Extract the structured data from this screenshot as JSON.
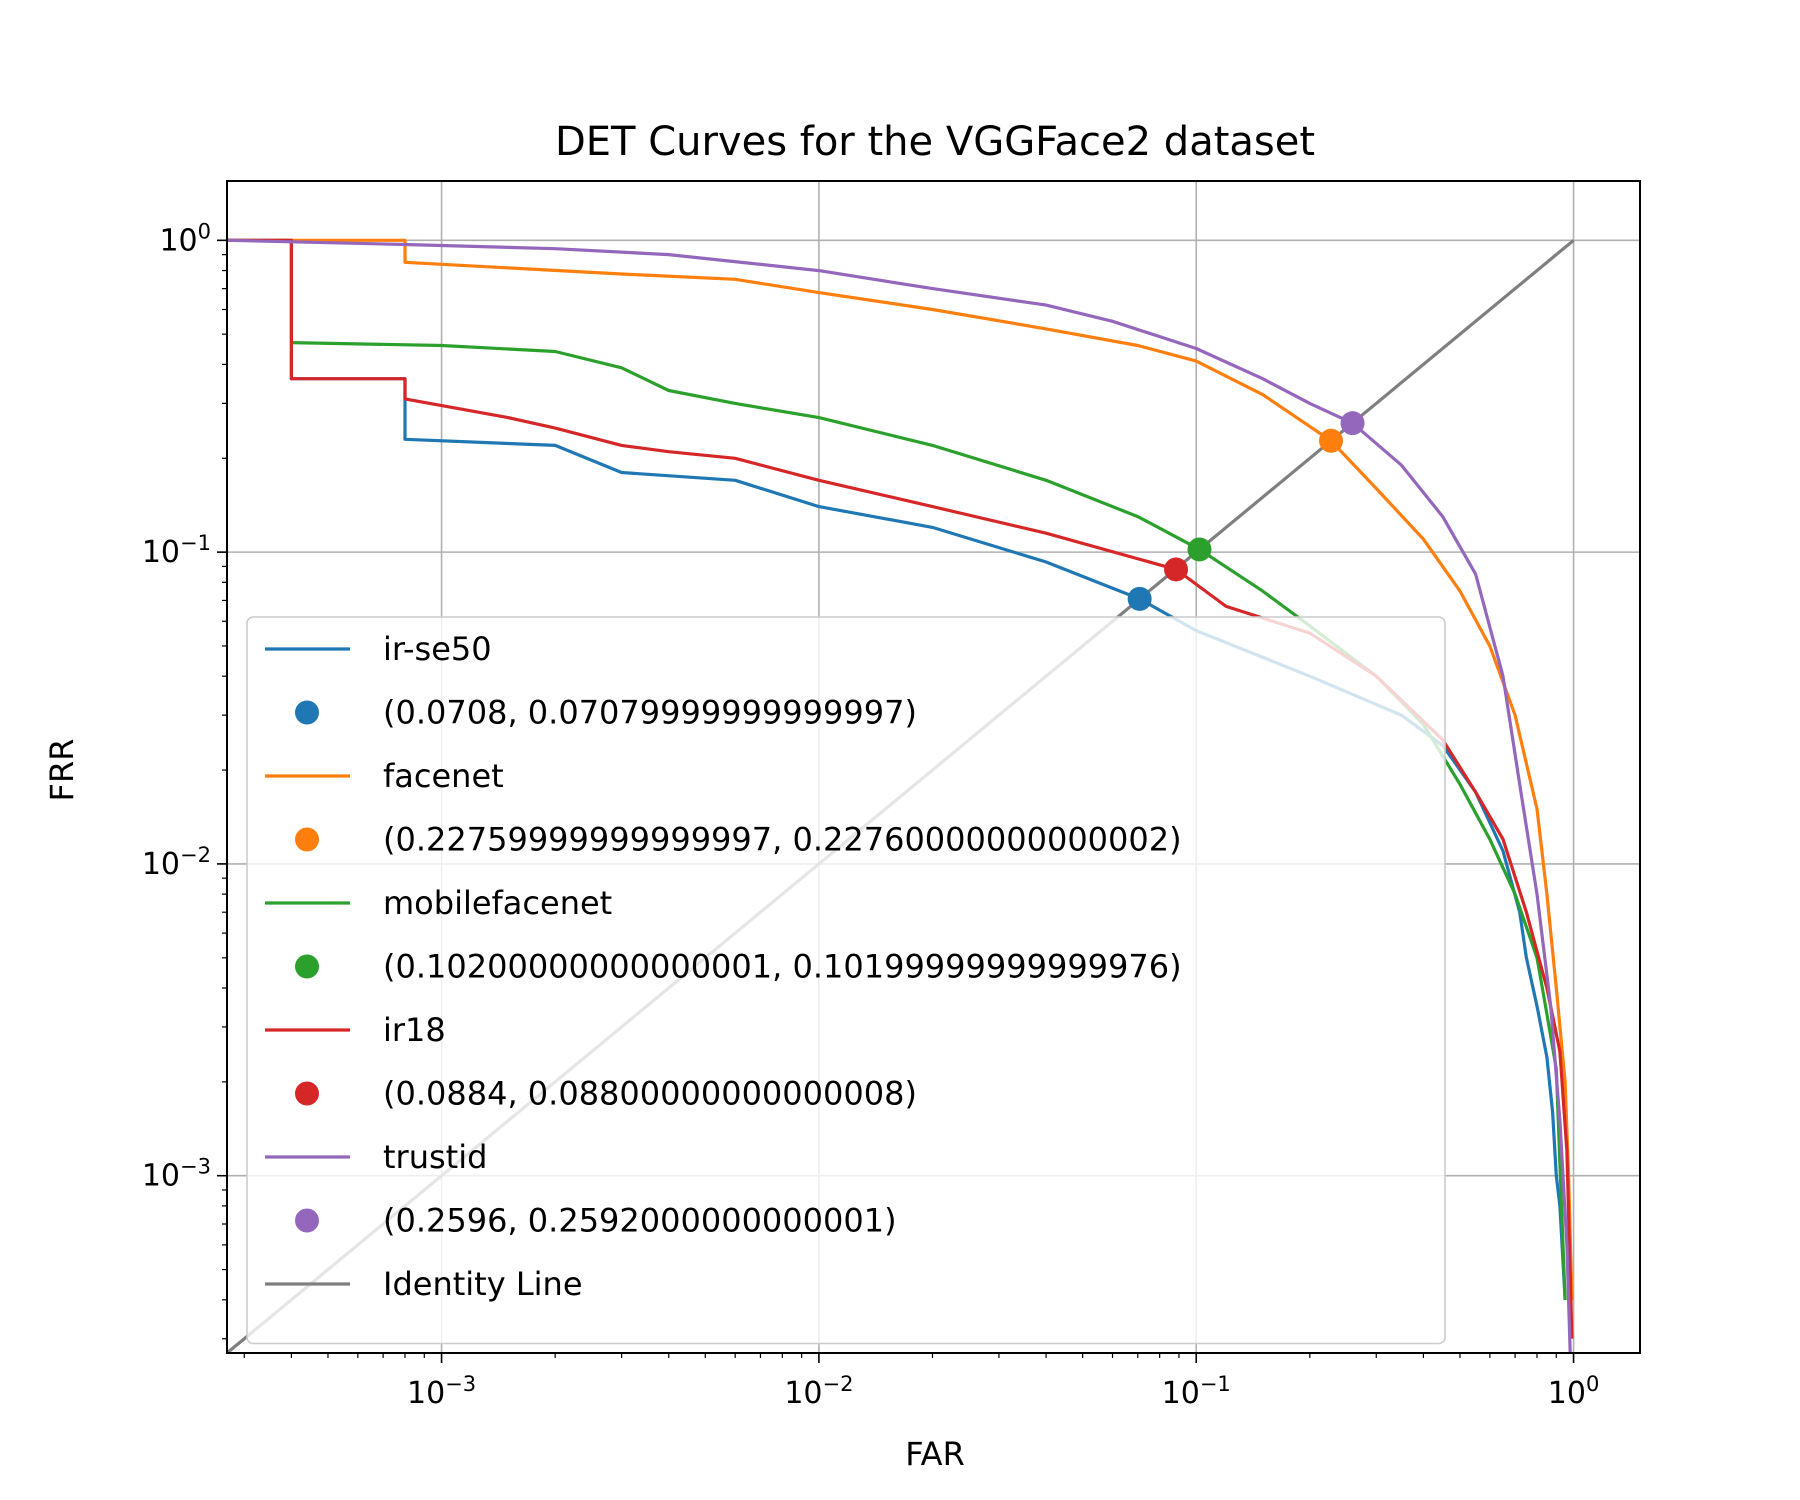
{
  "chart_data": {
    "type": "line",
    "title": "DET Curves for the VGGFace2 dataset",
    "xlabel": "FAR",
    "ylabel": "FRR",
    "x_scale": "log",
    "y_scale": "log",
    "xlim": [
      0.00027,
      1.5
    ],
    "ylim": [
      0.00027,
      1.55
    ],
    "grid": true,
    "legend_placement": "lower-left",
    "x_ticks": [
      {
        "value": 0.001,
        "base": "10",
        "exp": "−3"
      },
      {
        "value": 0.01,
        "base": "10",
        "exp": "−2"
      },
      {
        "value": 0.1,
        "base": "10",
        "exp": "−1"
      },
      {
        "value": 1,
        "base": "10",
        "exp": "0"
      }
    ],
    "y_ticks": [
      {
        "value": 0.001,
        "base": "10",
        "exp": "−3"
      },
      {
        "value": 0.01,
        "base": "10",
        "exp": "−2"
      },
      {
        "value": 0.1,
        "base": "10",
        "exp": "−1"
      },
      {
        "value": 1,
        "base": "10",
        "exp": "0"
      }
    ],
    "series": [
      {
        "name": "ir-se50",
        "color": "#1f77b4",
        "x": [
          0.00027,
          0.0004,
          0.0004,
          0.0008,
          0.0008,
          0.002,
          0.003,
          0.006,
          0.01,
          0.02,
          0.04,
          0.0708,
          0.1,
          0.2,
          0.35,
          0.45,
          0.55,
          0.65,
          0.72,
          0.75,
          0.8,
          0.85,
          0.88,
          0.9,
          0.92,
          0.95
        ],
        "y": [
          1.0,
          1.0,
          0.36,
          0.36,
          0.23,
          0.22,
          0.18,
          0.17,
          0.14,
          0.12,
          0.093,
          0.0708,
          0.056,
          0.04,
          0.03,
          0.024,
          0.017,
          0.011,
          0.007,
          0.005,
          0.0035,
          0.0024,
          0.0016,
          0.001,
          0.0008,
          0.0004
        ]
      },
      {
        "name": "facenet",
        "color": "#ff7f0e",
        "x": [
          0.00027,
          0.0008,
          0.0008,
          0.003,
          0.006,
          0.01,
          0.02,
          0.04,
          0.07,
          0.1,
          0.15,
          0.2276,
          0.3,
          0.4,
          0.5,
          0.6,
          0.7,
          0.8,
          0.85,
          0.9,
          0.95,
          0.97,
          0.99
        ],
        "y": [
          1.0,
          1.0,
          0.85,
          0.78,
          0.75,
          0.68,
          0.6,
          0.52,
          0.46,
          0.41,
          0.32,
          0.2276,
          0.16,
          0.11,
          0.075,
          0.05,
          0.03,
          0.015,
          0.008,
          0.004,
          0.002,
          0.001,
          0.0004
        ]
      },
      {
        "name": "mobilefacenet",
        "color": "#2ca02c",
        "x": [
          0.0004,
          0.001,
          0.002,
          0.003,
          0.004,
          0.006,
          0.01,
          0.02,
          0.04,
          0.07,
          0.102,
          0.15,
          0.2,
          0.3,
          0.4,
          0.5,
          0.6,
          0.7,
          0.8,
          0.85,
          0.9,
          0.95
        ],
        "y": [
          0.47,
          0.46,
          0.44,
          0.39,
          0.33,
          0.3,
          0.27,
          0.22,
          0.17,
          0.13,
          0.102,
          0.075,
          0.058,
          0.04,
          0.028,
          0.018,
          0.012,
          0.008,
          0.005,
          0.0033,
          0.0022,
          0.0004
        ]
      },
      {
        "name": "ir18",
        "color": "#d62728",
        "x": [
          0.00027,
          0.0004,
          0.0004,
          0.0008,
          0.0008,
          0.0015,
          0.002,
          0.003,
          0.004,
          0.006,
          0.01,
          0.02,
          0.04,
          0.0884,
          0.12,
          0.2,
          0.3,
          0.45,
          0.55,
          0.65,
          0.75,
          0.85,
          0.92,
          0.96,
          0.99
        ],
        "y": [
          1.0,
          1.0,
          0.36,
          0.36,
          0.31,
          0.27,
          0.25,
          0.22,
          0.21,
          0.2,
          0.17,
          0.14,
          0.115,
          0.088,
          0.067,
          0.055,
          0.04,
          0.025,
          0.017,
          0.012,
          0.007,
          0.004,
          0.0025,
          0.0012,
          0.0003
        ]
      },
      {
        "name": "trustid",
        "color": "#9467bd",
        "x": [
          0.00027,
          0.0008,
          0.002,
          0.004,
          0.01,
          0.02,
          0.04,
          0.06,
          0.1,
          0.15,
          0.2,
          0.2596,
          0.35,
          0.45,
          0.55,
          0.65,
          0.72,
          0.8,
          0.87,
          0.92,
          0.96,
          0.98
        ],
        "y": [
          1.0,
          0.97,
          0.94,
          0.9,
          0.8,
          0.7,
          0.62,
          0.55,
          0.45,
          0.36,
          0.3,
          0.2592,
          0.19,
          0.13,
          0.085,
          0.04,
          0.018,
          0.008,
          0.0035,
          0.0015,
          0.0006,
          0.00027
        ]
      },
      {
        "name": "Identity Line",
        "color": "#7f7f7f",
        "x": [
          0.00027,
          1.0
        ],
        "y": [
          0.00027,
          1.0
        ]
      }
    ],
    "eer_points": [
      {
        "label": "(0.0708, 0.07079999999999997)",
        "color": "#1f77b4",
        "x": 0.0708,
        "y": 0.0708
      },
      {
        "label": "(0.22759999999999997, 0.22760000000000002)",
        "color": "#ff7f0e",
        "x": 0.2276,
        "y": 0.2276
      },
      {
        "label": "(0.10200000000000001, 0.10199999999999976)",
        "color": "#2ca02c",
        "x": 0.102,
        "y": 0.102
      },
      {
        "label": "(0.0884, 0.08800000000000008)",
        "color": "#d62728",
        "x": 0.0884,
        "y": 0.088
      },
      {
        "label": "(0.2596, 0.2592000000000001)",
        "color": "#9467bd",
        "x": 0.2596,
        "y": 0.2592
      }
    ],
    "legend": [
      {
        "kind": "line",
        "label": "ir-se50",
        "color": "#1f77b4"
      },
      {
        "kind": "point",
        "label": "(0.0708, 0.07079999999999997)",
        "color": "#1f77b4"
      },
      {
        "kind": "line",
        "label": "facenet",
        "color": "#ff7f0e"
      },
      {
        "kind": "point",
        "label": "(0.22759999999999997, 0.22760000000000002)",
        "color": "#ff7f0e"
      },
      {
        "kind": "line",
        "label": "mobilefacenet",
        "color": "#2ca02c"
      },
      {
        "kind": "point",
        "label": "(0.10200000000000001, 0.10199999999999976)",
        "color": "#2ca02c"
      },
      {
        "kind": "line",
        "label": "ir18",
        "color": "#d62728"
      },
      {
        "kind": "point",
        "label": "(0.0884, 0.08800000000000008)",
        "color": "#d62728"
      },
      {
        "kind": "line",
        "label": "trustid",
        "color": "#9467bd"
      },
      {
        "kind": "point",
        "label": "(0.2596, 0.2592000000000001)",
        "color": "#9467bd"
      },
      {
        "kind": "line",
        "label": "Identity Line",
        "color": "#7f7f7f"
      }
    ]
  }
}
